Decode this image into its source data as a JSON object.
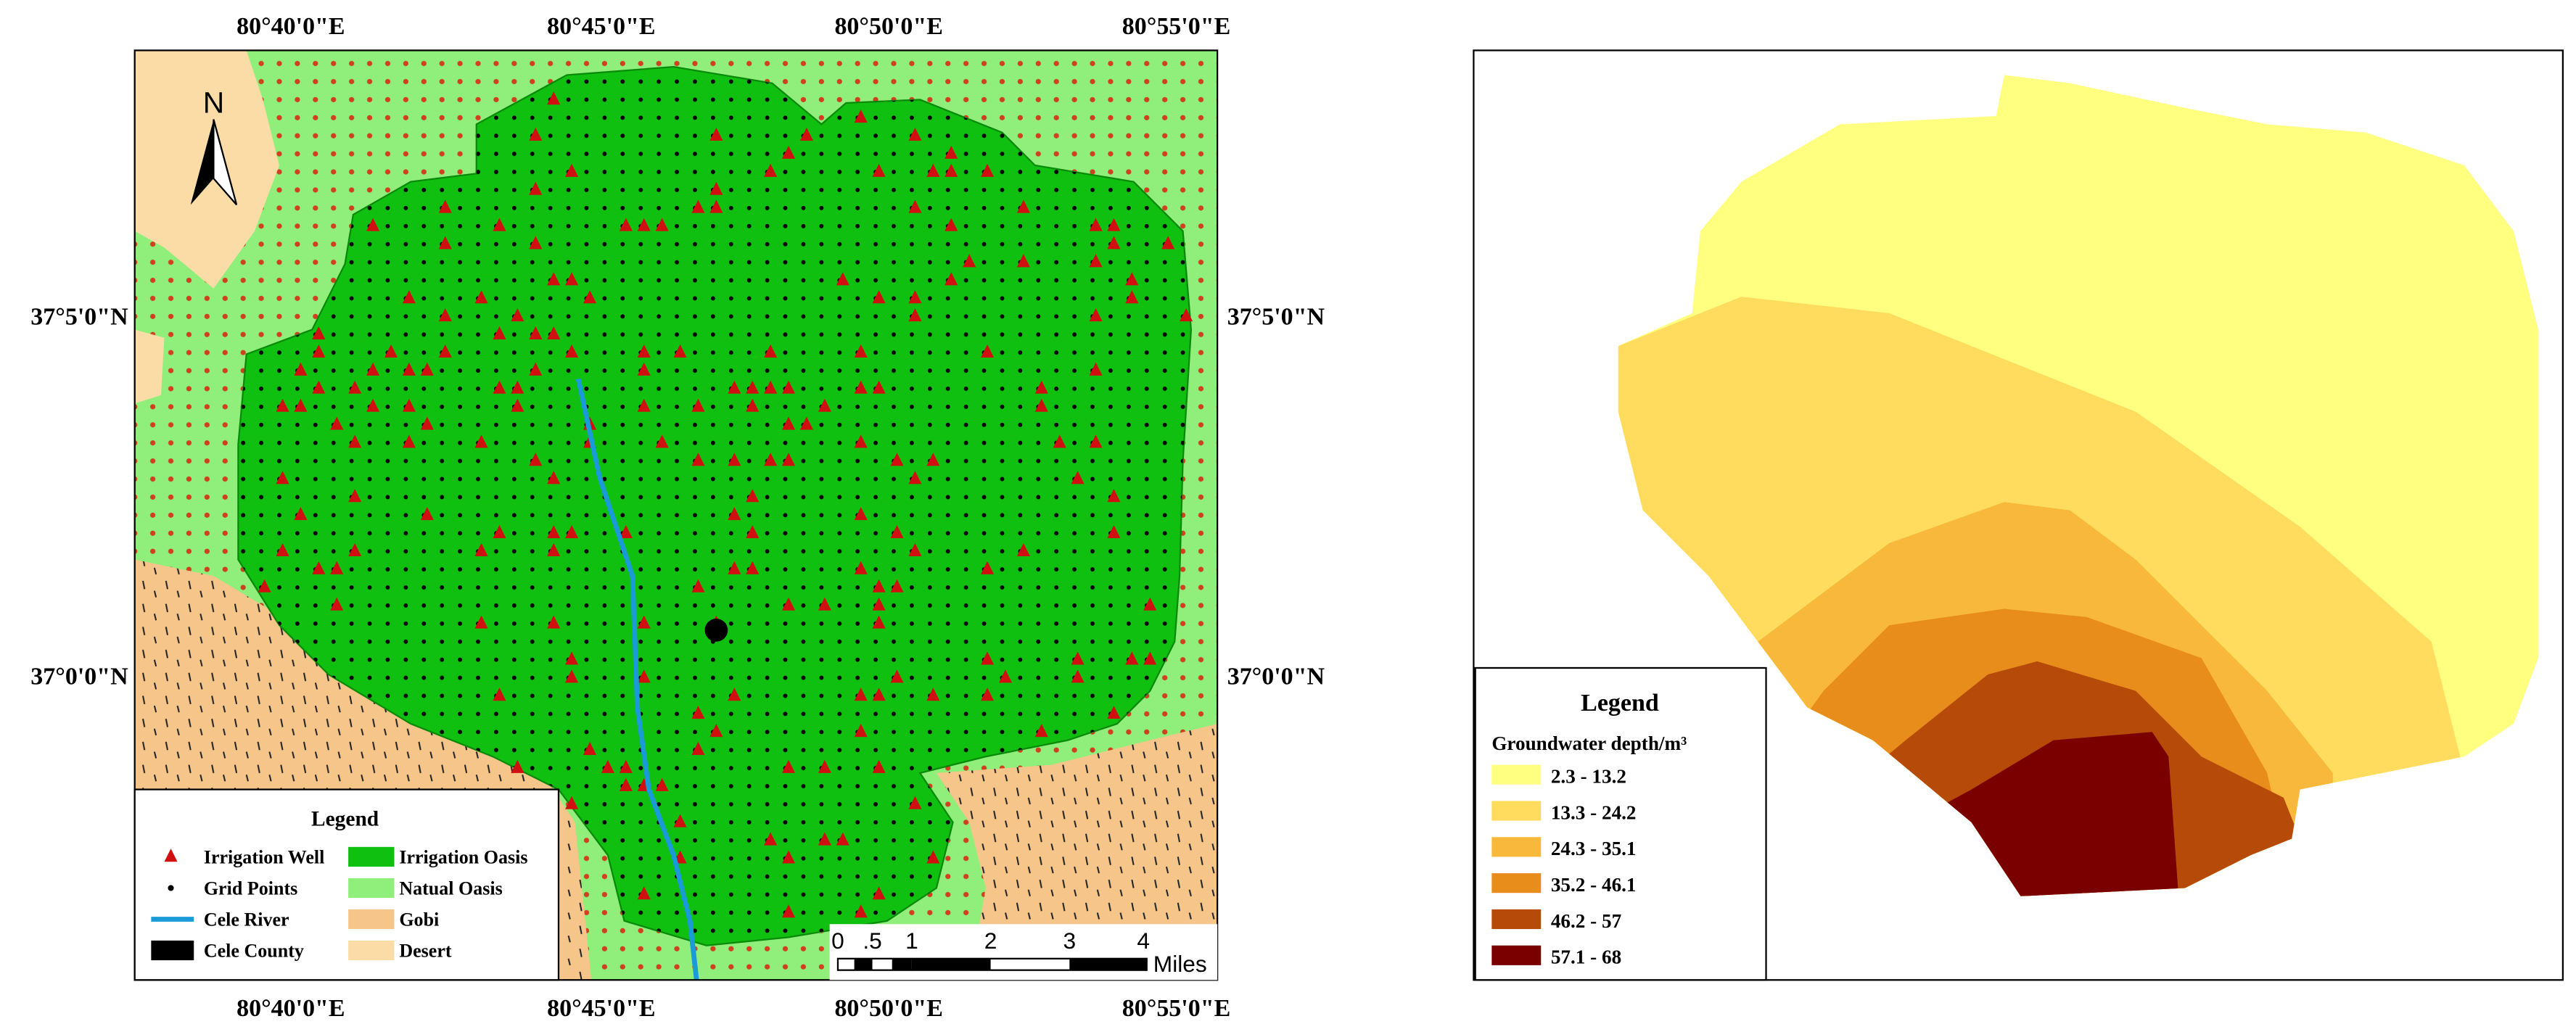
{
  "left_map": {
    "lon_labels": [
      "80°40'0\"E",
      "80°45'0\"E",
      "80°50'0\"E",
      "80°55'0\"E"
    ],
    "lat_labels": [
      "37°5'0\"N",
      "37°0'0\"N"
    ],
    "north": "N",
    "legend": {
      "title": "Legend",
      "items": [
        "Irrigation Well",
        "Grid Points",
        "Cele River",
        "Cele County",
        "Irrigation Oasis",
        "Natual Oasis",
        "Gobi",
        "Desert"
      ]
    },
    "scale": {
      "ticks": [
        "0",
        ".5",
        "1",
        "2",
        "3",
        "4"
      ],
      "unit": "Miles"
    }
  },
  "right_map": {
    "legend": {
      "title": "Legend",
      "subtitle": "Groundwater depth/m³",
      "classes": [
        {
          "label": "2.3 - 13.2",
          "color": "#ffff80"
        },
        {
          "label": "13.3 - 24.2",
          "color": "#ffdc5e"
        },
        {
          "label": "24.3 - 35.1",
          "color": "#f8b83c"
        },
        {
          "label": "35.2 - 46.1",
          "color": "#e88c1c"
        },
        {
          "label": "46.2 - 57",
          "color": "#b64a08"
        },
        {
          "label": "57.1 - 68",
          "color": "#7a0000"
        }
      ]
    }
  }
}
